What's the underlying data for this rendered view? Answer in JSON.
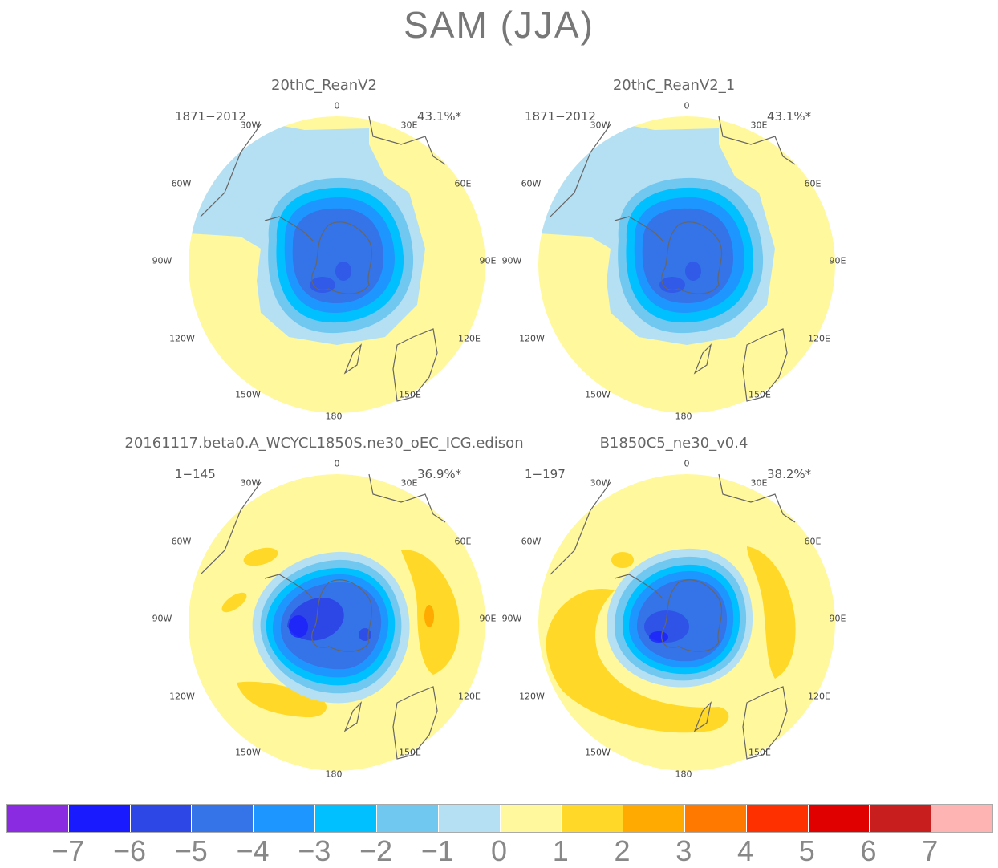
{
  "title": "SAM (JJA)",
  "colorbar": {
    "colors": [
      "#8a2be2",
      "#1a1aff",
      "#2d46e6",
      "#3474e8",
      "#1e96ff",
      "#00c0ff",
      "#70c8f0",
      "#b5e0f4",
      "#fff89c",
      "#ffd828",
      "#ffaa00",
      "#ff7800",
      "#ff3000",
      "#e00000",
      "#c81e1e",
      "#ffb4b4"
    ],
    "labels": [
      "−7",
      "−6",
      "−5",
      "−4",
      "−3",
      "−2",
      "−1",
      "0",
      "1",
      "2",
      "3",
      "4",
      "5",
      "6",
      "7"
    ]
  },
  "lon_labels": {
    "n": "0",
    "ne": "30E",
    "ene": "60E",
    "e": "90E",
    "ese": "120E",
    "se": "150E",
    "s": "180",
    "sw": "150W",
    "wsw": "120W",
    "w": "90W",
    "wnw": "60W",
    "nw": "30W"
  },
  "panels": [
    {
      "title": "20thC_ReanV2",
      "period": "1871−2012",
      "variance": "43.1%*"
    },
    {
      "title": "20thC_ReanV2_1",
      "period": "1871−2012",
      "variance": "43.1%*"
    },
    {
      "title": "20161117.beta0.A_WCYCL1850S.ne30_oEC_ICG.edison",
      "period": "1−145",
      "variance": "36.9%*"
    },
    {
      "title": "B1850C5_ne30_v0.4",
      "period": "1−197",
      "variance": "38.2%*"
    }
  ]
}
